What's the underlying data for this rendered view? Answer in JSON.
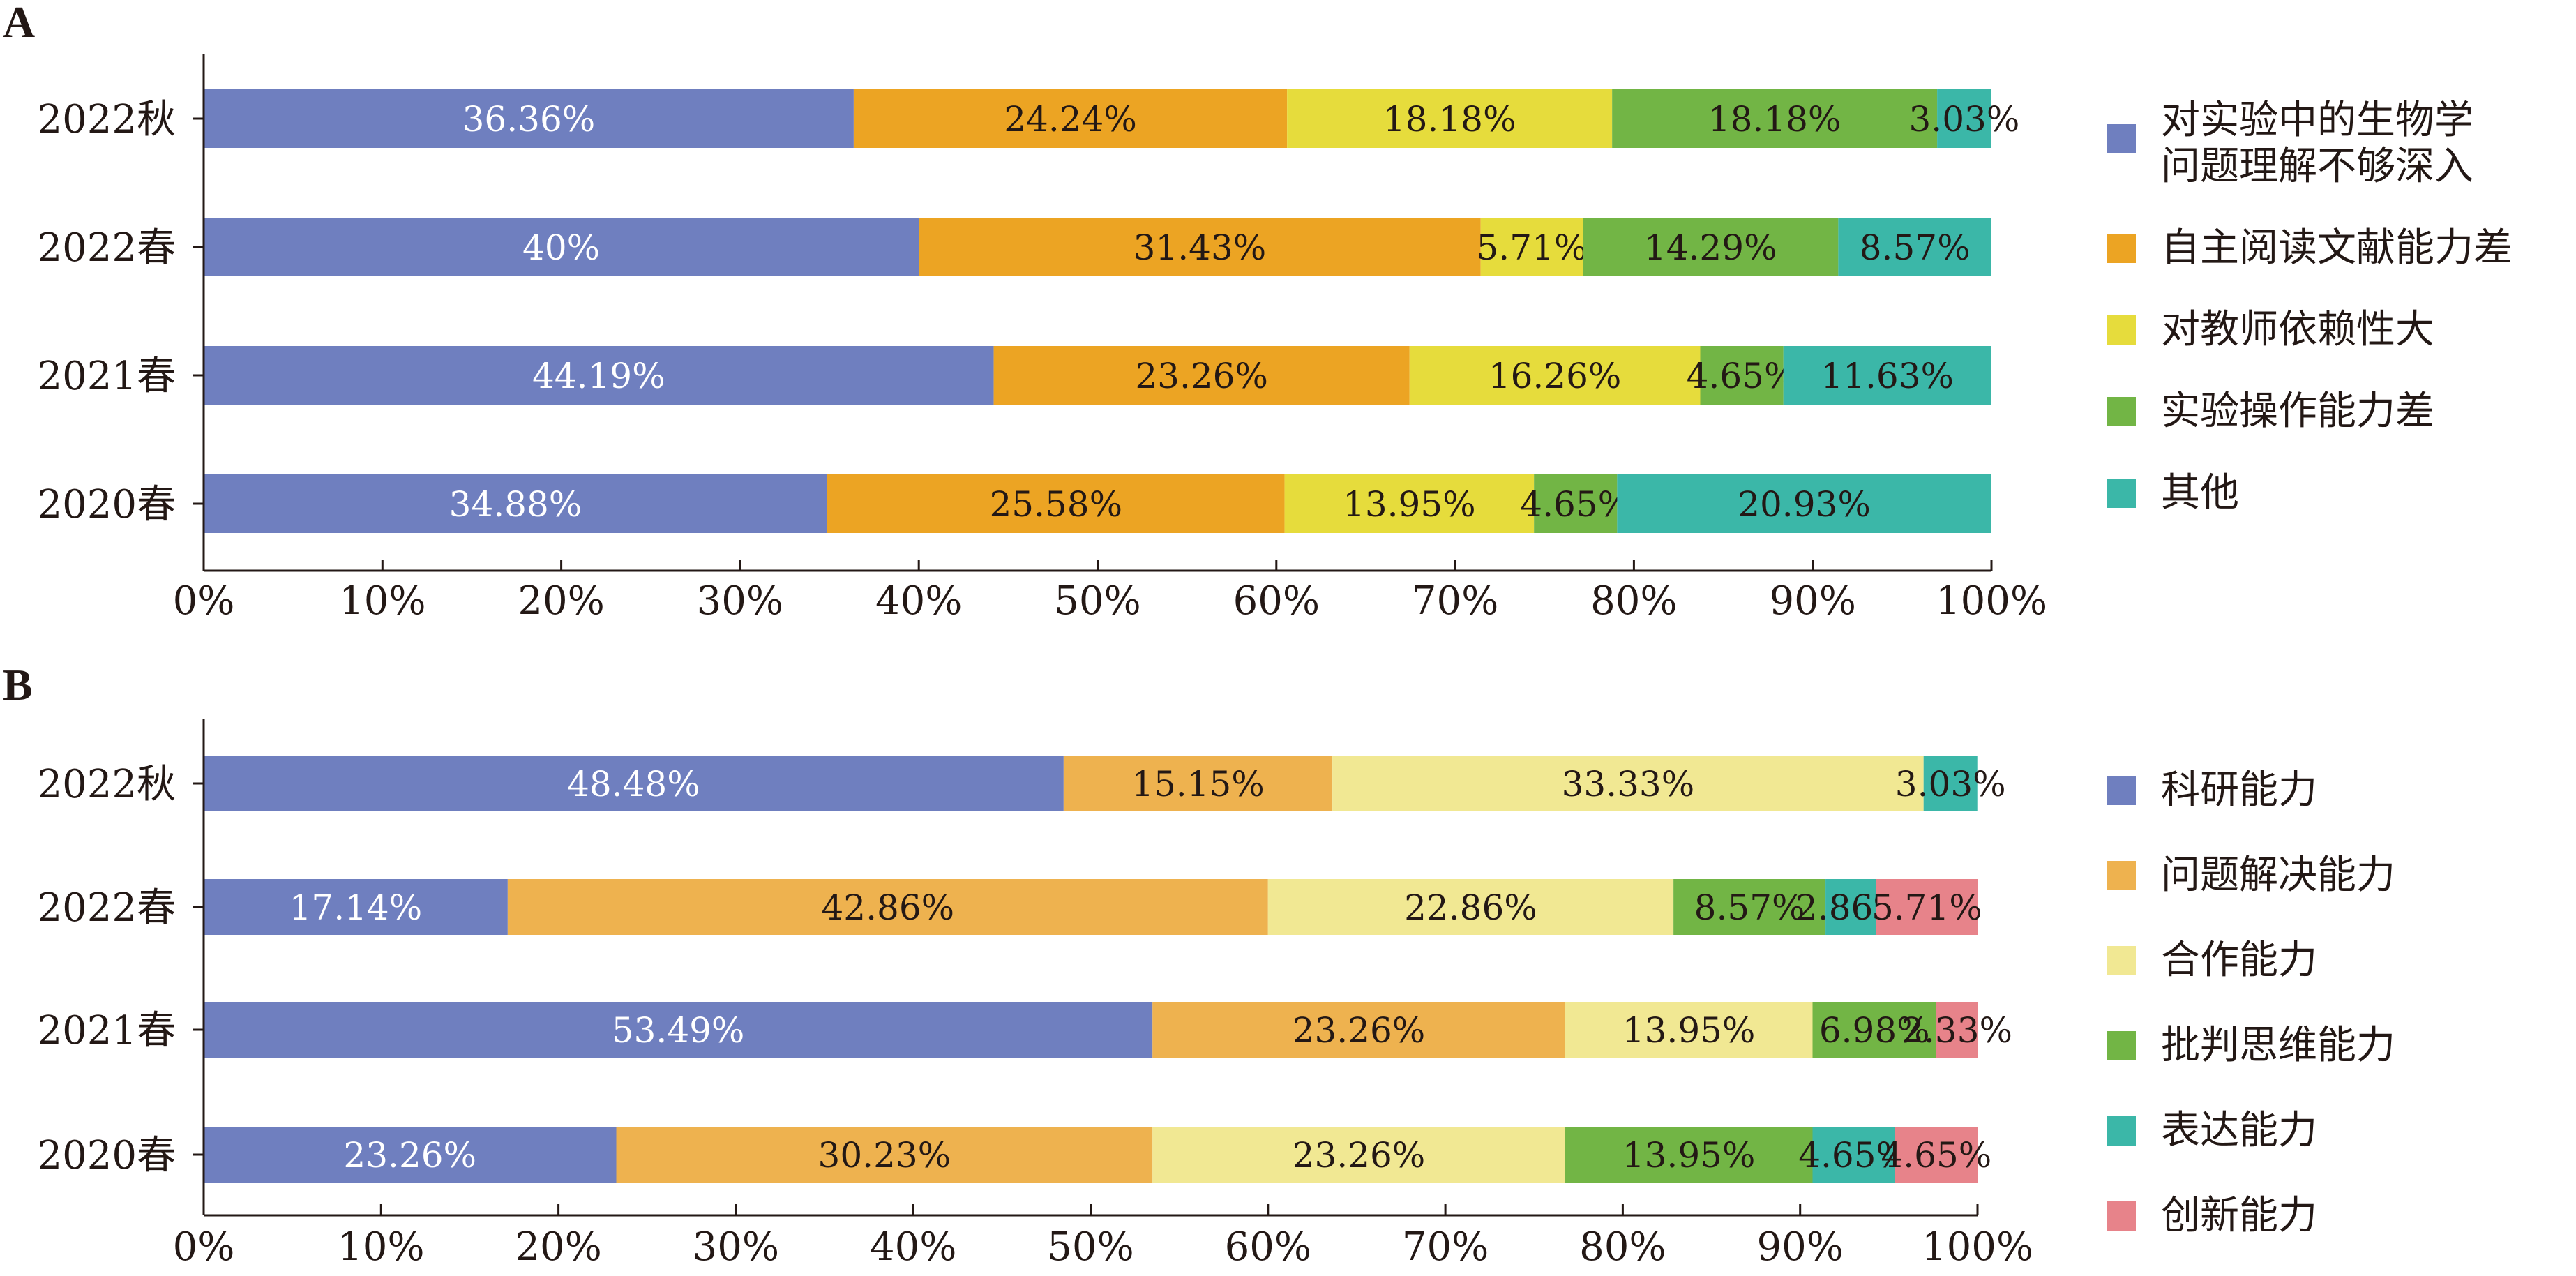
{
  "chart_data": [
    {
      "panel_label": "A",
      "type": "bar",
      "orientation": "horizontal",
      "stacked": true,
      "percent_stacked": true,
      "categories": [
        "2022秋",
        "2022春",
        "2021春",
        "2020春"
      ],
      "xlim": [
        0,
        100
      ],
      "x_ticks": [
        "0%",
        "10%",
        "20%",
        "30%",
        "40%",
        "50%",
        "60%",
        "70%",
        "80%",
        "90%",
        "100%"
      ],
      "series": [
        {
          "name": "对实验中的生物学问题理解不够深入",
          "legend_lines": [
            "对实验中的生物学",
            "问题理解不够深入"
          ],
          "color": "#6f7fbf",
          "label_color": "#ffffff",
          "values": [
            36.36,
            40,
            44.19,
            34.88
          ],
          "labels": [
            "36.36%",
            "40%",
            "44.19%",
            "34.88%"
          ]
        },
        {
          "name": "自主阅读文献能力差",
          "legend_lines": [
            "自主阅读文献能力差"
          ],
          "color": "#eca423",
          "label_color": "#231815",
          "values": [
            24.24,
            31.43,
            23.26,
            25.58
          ],
          "labels": [
            "24.24%",
            "31.43%",
            "23.26%",
            "25.58%"
          ]
        },
        {
          "name": "对教师依赖性大",
          "legend_lines": [
            "对教师依赖性大"
          ],
          "color": "#e6dc3c",
          "label_color": "#231815",
          "values": [
            18.18,
            5.71,
            16.26,
            13.95
          ],
          "labels": [
            "18.18%",
            "5.71%",
            "16.26%",
            "13.95%"
          ]
        },
        {
          "name": "实验操作能力差",
          "legend_lines": [
            "实验操作能力差"
          ],
          "color": "#72b545",
          "label_color": "#231815",
          "values": [
            18.18,
            14.29,
            4.65,
            4.65
          ],
          "labels": [
            "18.18%",
            "14.29%",
            "4.65%",
            "4.65%"
          ]
        },
        {
          "name": "其他",
          "legend_lines": [
            "其他"
          ],
          "color": "#3bb7a8",
          "label_color": "#231815",
          "values": [
            3.03,
            8.57,
            11.63,
            20.93
          ],
          "labels": [
            "3.03%",
            "8.57%",
            "11.63%",
            "20.93%"
          ]
        }
      ],
      "legend_position": "right",
      "grid": false
    },
    {
      "panel_label": "B",
      "type": "bar",
      "orientation": "horizontal",
      "stacked": true,
      "percent_stacked": true,
      "categories": [
        "2022秋",
        "2022春",
        "2021春",
        "2020春"
      ],
      "xlim": [
        0,
        100
      ],
      "x_ticks": [
        "0%",
        "10%",
        "20%",
        "30%",
        "40%",
        "50%",
        "60%",
        "70%",
        "80%",
        "90%",
        "100%"
      ],
      "series": [
        {
          "name": "科研能力",
          "legend_lines": [
            "科研能力"
          ],
          "color": "#6f7fbf",
          "label_color": "#ffffff",
          "values": [
            48.48,
            17.14,
            53.49,
            23.26
          ],
          "labels": [
            "48.48%",
            "17.14%",
            "53.49%",
            "23.26%"
          ]
        },
        {
          "name": "问题解决能力",
          "legend_lines": [
            "问题解决能力"
          ],
          "color": "#eeb24f",
          "label_color": "#231815",
          "values": [
            15.15,
            42.86,
            23.26,
            30.23
          ],
          "labels": [
            "15.15%",
            "42.86%",
            "23.26%",
            "30.23%"
          ]
        },
        {
          "name": "合作能力",
          "legend_lines": [
            "合作能力"
          ],
          "color": "#f1e893",
          "label_color": "#231815",
          "values": [
            33.33,
            22.86,
            13.95,
            23.26
          ],
          "labels": [
            "33.33%",
            "22.86%",
            "13.95%",
            "23.26%"
          ]
        },
        {
          "name": "批判思维能力",
          "legend_lines": [
            "批判思维能力"
          ],
          "color": "#72b545",
          "label_color": "#231815",
          "values": [
            0,
            8.57,
            6.98,
            13.95
          ],
          "labels": [
            "",
            "8.57%",
            "6.98%",
            "13.95%"
          ]
        },
        {
          "name": "表达能力",
          "legend_lines": [
            "表达能力"
          ],
          "color": "#3bb7a8",
          "label_color": "#231815",
          "values": [
            3.03,
            2.86,
            0,
            4.65
          ],
          "labels": [
            "3.03%",
            "2.86%",
            "",
            "4.65%"
          ]
        },
        {
          "name": "创新能力",
          "legend_lines": [
            "创新能力"
          ],
          "color": "#e7838a",
          "label_color": "#231815",
          "values": [
            0,
            5.71,
            2.33,
            4.65
          ],
          "labels": [
            "",
            "5.71%",
            "2.33%",
            "4.65%"
          ]
        }
      ],
      "legend_position": "right",
      "grid": false
    }
  ]
}
